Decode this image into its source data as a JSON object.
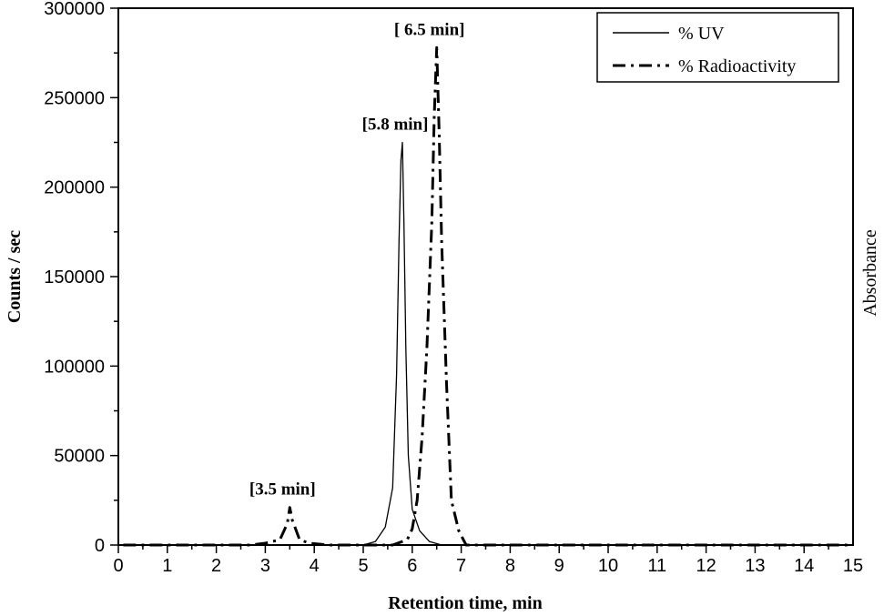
{
  "chart_data": {
    "type": "line",
    "xlabel": "Retention time, min",
    "ylabel": "Counts / sec",
    "y2label": "Absorbance",
    "xlim": [
      0,
      15
    ],
    "ylim": [
      0,
      300000
    ],
    "xticks": [
      "0",
      "1",
      "2",
      "3",
      "4",
      "5",
      "6",
      "7",
      "8",
      "9",
      "10",
      "11",
      "12",
      "13",
      "14",
      "15"
    ],
    "yticks": [
      "0",
      "50000",
      "100000",
      "150000",
      "200000",
      "250000",
      "300000"
    ],
    "grid": false,
    "legend_position": "top-right",
    "series": [
      {
        "name": "% UV",
        "name_color": "#e8141b",
        "style": "solid",
        "x": [
          0.1,
          5.0,
          5.25,
          5.45,
          5.6,
          5.68,
          5.73,
          5.77,
          5.8,
          5.83,
          5.87,
          5.92,
          6.0,
          6.15,
          6.35,
          6.6,
          15.0
        ],
        "y": [
          0,
          0,
          2000,
          10000,
          32000,
          95000,
          170000,
          215000,
          225000,
          180000,
          110000,
          50000,
          20000,
          8000,
          2000,
          0,
          0
        ]
      },
      {
        "name": "% Radioactivity",
        "style": "dashdot",
        "x": [
          0.1,
          2.7,
          3.0,
          3.3,
          3.45,
          3.5,
          3.55,
          3.7,
          3.9,
          4.3,
          5.6,
          5.9,
          6.0,
          6.1,
          6.2,
          6.3,
          6.4,
          6.45,
          6.5,
          6.55,
          6.6,
          6.7,
          6.8,
          6.95,
          7.1,
          15.0
        ],
        "y": [
          0,
          0,
          1000,
          3000,
          12000,
          21000,
          14000,
          3000,
          1000,
          0,
          0,
          3000,
          9000,
          25000,
          60000,
          110000,
          180000,
          240000,
          278000,
          230000,
          170000,
          90000,
          25000,
          8000,
          0,
          0
        ]
      }
    ],
    "annotations": [
      {
        "text": "[3.5 min]",
        "x": 3.5,
        "y": 21000
      },
      {
        "text": "[5.8 min]",
        "x": 5.8,
        "y": 225000
      },
      {
        "text": "[ 6.5 min]",
        "x": 6.5,
        "y": 278000
      }
    ]
  }
}
